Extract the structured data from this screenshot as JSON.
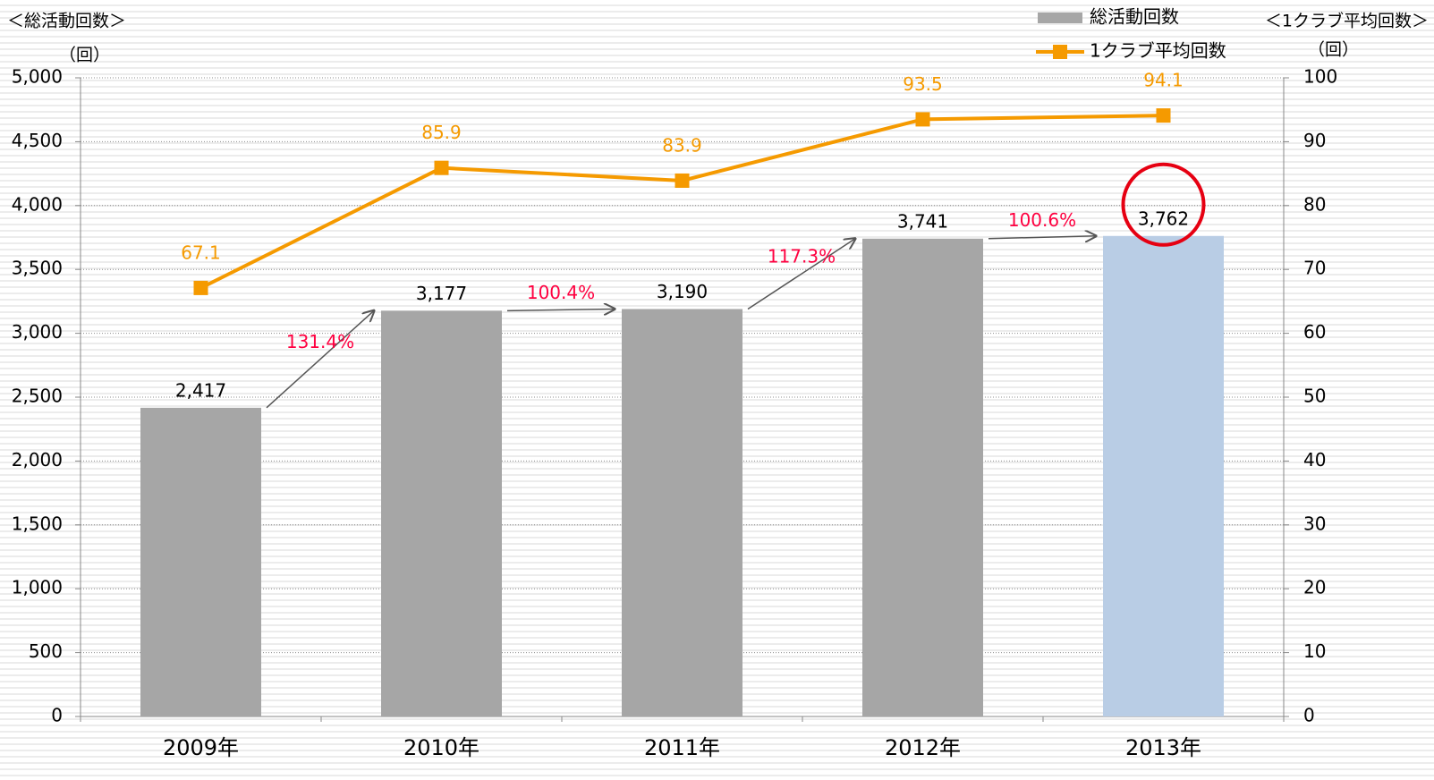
{
  "chart_data": {
    "type": "bar",
    "ylabel": "＜総活動回数＞",
    "yunit": "（回）",
    "y2label": "＜1クラブ平均回数＞",
    "y2unit": "（回）",
    "categories": [
      "2009年",
      "2010年",
      "2011年",
      "2012年",
      "2013年"
    ],
    "series": [
      {
        "name": "総活動回数",
        "type": "bar",
        "color": "#a6a6a6",
        "colors": [
          "#a6a6a6",
          "#a6a6a6",
          "#a6a6a6",
          "#a6a6a6",
          "#b9cde5"
        ],
        "values": [
          2417,
          3177,
          3190,
          3741,
          3762
        ],
        "value_labels": [
          "2,417",
          "3,177",
          "3,190",
          "3,741",
          "3,762"
        ]
      },
      {
        "name": "1クラブ平均回数",
        "type": "line",
        "axis": "y2",
        "color": "#f59a00",
        "values": [
          67.1,
          85.9,
          83.9,
          93.5,
          94.1
        ]
      }
    ],
    "annotations": [
      "131.4%",
      "100.4%",
      "117.3%",
      "100.6%"
    ],
    "annotation_color": "#ff0040",
    "ylim": [
      0,
      5000
    ],
    "yticks": [
      0,
      500,
      {
        "value": 1000,
        "label": "1,000"
      },
      {
        "value": 1500,
        "label": "1,500"
      },
      {
        "value": 2000,
        "label": "2,000"
      },
      {
        "value": 2500,
        "label": "2,500"
      },
      {
        "value": 3000,
        "label": "3,000"
      },
      {
        "value": 3500,
        "label": "3,500"
      },
      {
        "value": 4000,
        "label": "4,000"
      },
      {
        "value": 4500,
        "label": "4,500"
      },
      {
        "value": 5000,
        "label": "5,000"
      }
    ],
    "y2lim": [
      0,
      100
    ],
    "y2ticks": [
      0,
      10,
      20,
      30,
      40,
      50,
      60,
      70,
      80,
      90,
      100
    ],
    "grid": true
  }
}
